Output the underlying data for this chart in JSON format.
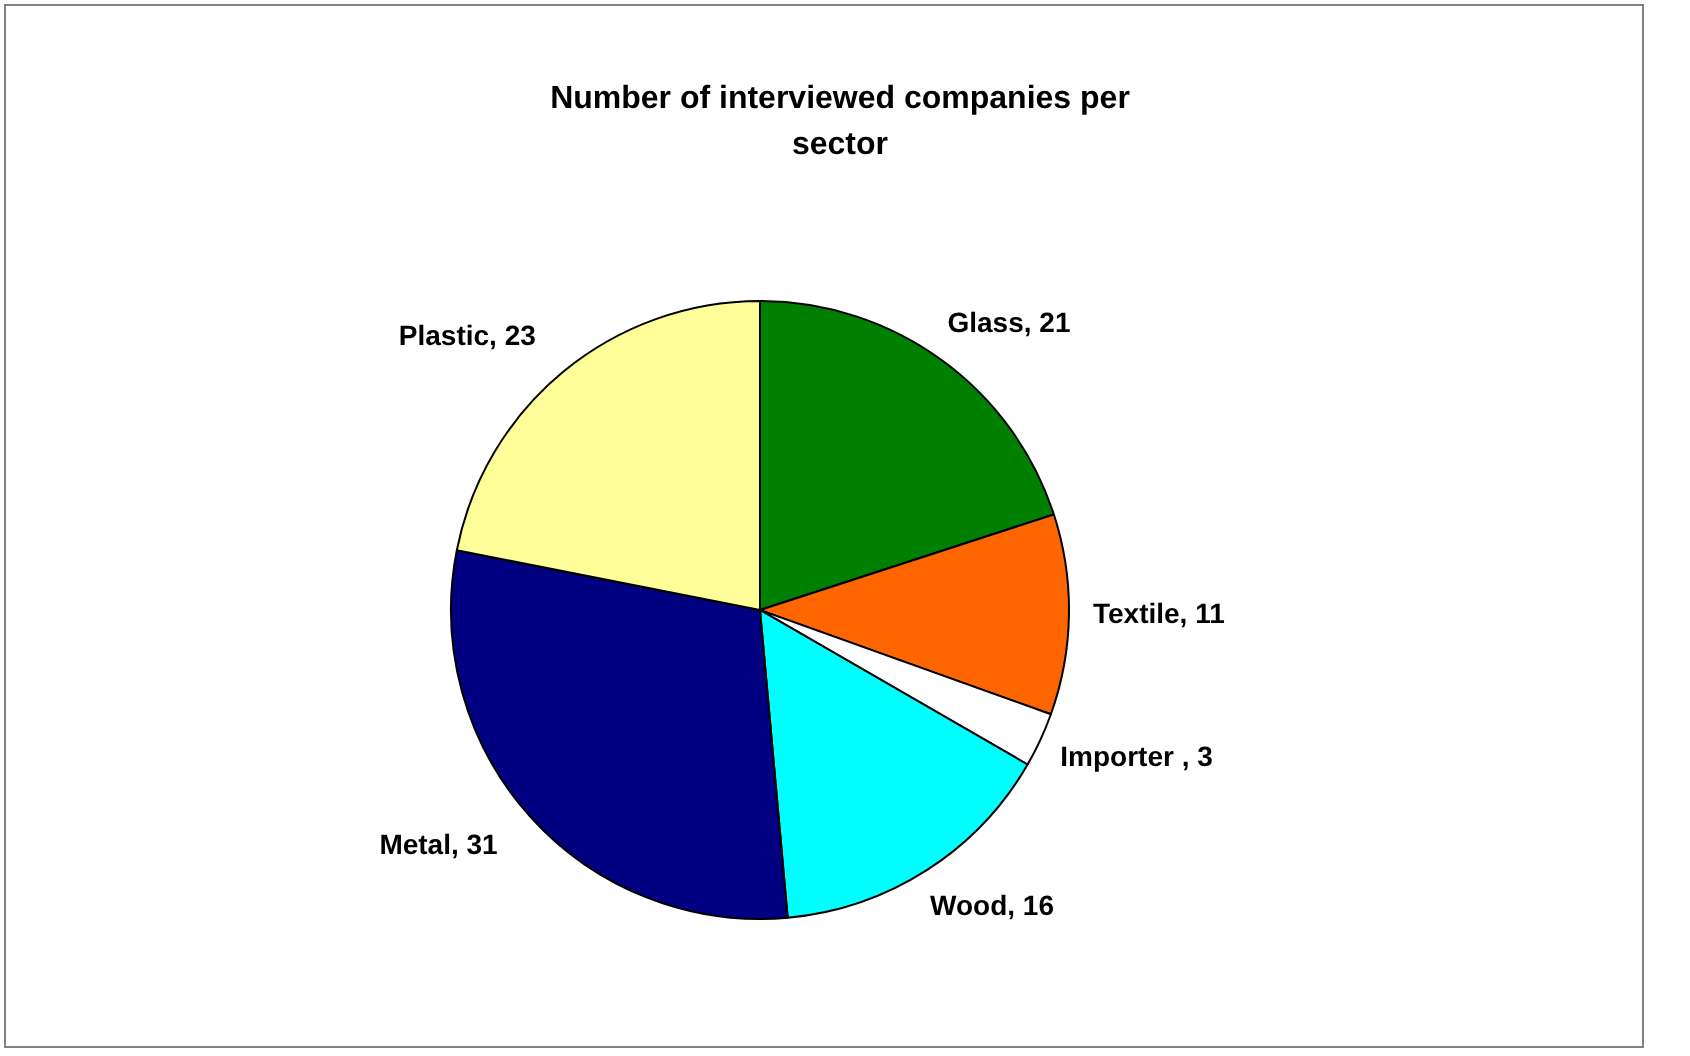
{
  "chart_data": {
    "type": "pie",
    "title": "Number of interviewed companies per sector",
    "categories": [
      "Glass, 21",
      "Textile, 11",
      "Importer , 3",
      "Wood, 16",
      "Metal, 31",
      "Plastic, 23"
    ],
    "values": [
      21,
      11,
      3,
      16,
      31,
      23
    ],
    "colors": [
      "#008000",
      "#ff6600",
      "#ffffff",
      "#00ffff",
      "#000080",
      "#ffff99"
    ],
    "legend": false
  }
}
